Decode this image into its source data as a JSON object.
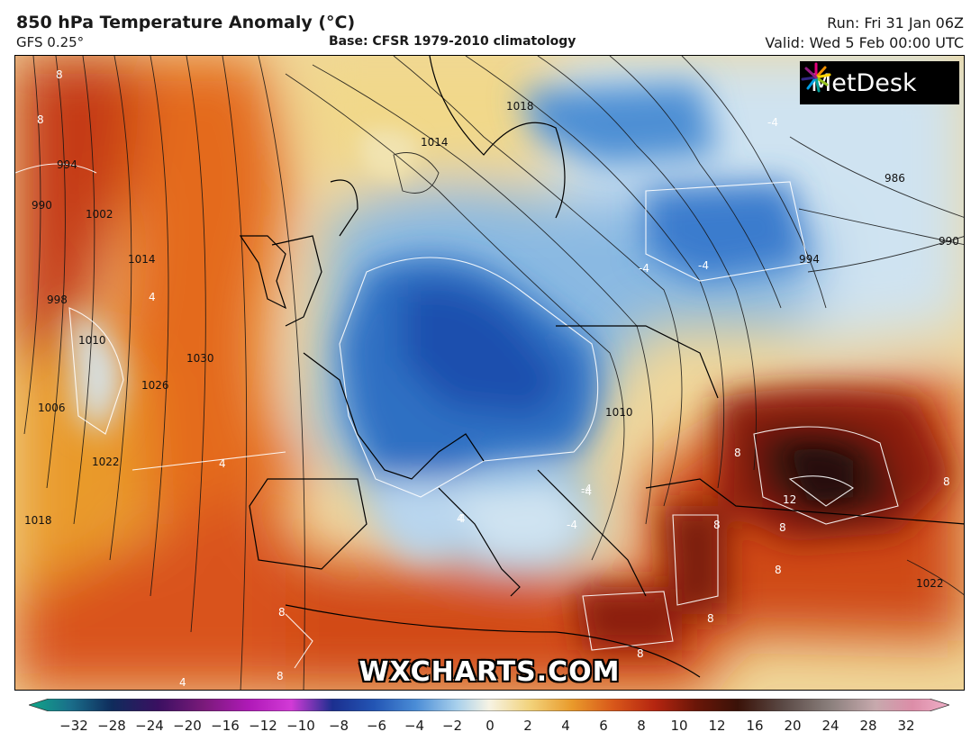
{
  "header": {
    "title": "850 hPa Temperature Anomaly (°C)",
    "model": "GFS 0.25°",
    "base": "Base: CFSR 1979-2010 climatology",
    "run": "Run: Fri 31 Jan 06Z",
    "valid": "Valid: Wed 5 Feb 00:00 UTC"
  },
  "logo": {
    "text": "MetDesk",
    "icon": "sunburst-logo-icon"
  },
  "watermark": "WXCHARTS.COM",
  "isobar_labels": [
    "994",
    "990",
    "1002",
    "1014",
    "998",
    "1010",
    "1006",
    "1026",
    "1030",
    "1022",
    "1018",
    "1018",
    "1014",
    "986",
    "990",
    "994",
    "1010",
    "1022"
  ],
  "anomaly_labels": [
    "8",
    "8",
    "4",
    "4",
    "-4",
    "-4",
    "-4",
    "-4",
    "-4",
    "4",
    "8",
    "8",
    "8",
    "12",
    "8",
    "8",
    "8",
    "8",
    "8",
    "4",
    "4",
    "8",
    "-4"
  ],
  "colorbar": {
    "ticks": [
      "−32",
      "−28",
      "−24",
      "−20",
      "−16",
      "−12",
      "−10",
      "−8",
      "−6",
      "−4",
      "−2",
      "0",
      "2",
      "4",
      "6",
      "8",
      "10",
      "12",
      "16",
      "20",
      "24",
      "28",
      "32"
    ],
    "colors": [
      "#10a889",
      "#1a6e8a",
      "#0f2c5c",
      "#3a1061",
      "#7a1a7a",
      "#b01ab8",
      "#d23ad6",
      "#1b2f8f",
      "#2355b4",
      "#4a8cd6",
      "#a8d0ec",
      "#f6f3e4",
      "#f2d27a",
      "#e99a2b",
      "#d8571a",
      "#b52510",
      "#6a1608",
      "#3a1208",
      "#5b4a46",
      "#8a7f7c",
      "#c7a9ad",
      "#dc8da8",
      "#f0b0c8"
    ]
  }
}
